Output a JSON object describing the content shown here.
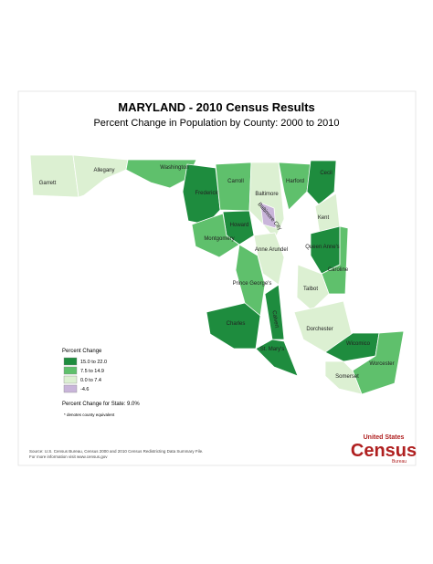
{
  "title": "MARYLAND - 2010 Census Results",
  "subtitle": "Percent Change in Population by County:  2000 to 2010",
  "counties": [
    {
      "name": "Garrett",
      "color": "#dcf0d2"
    },
    {
      "name": "Allegany",
      "color": "#dcf0d2"
    },
    {
      "name": "Washington",
      "color": "#5fc06c"
    },
    {
      "name": "Frederick",
      "color": "#1e8c3e"
    },
    {
      "name": "Carroll",
      "color": "#5fc06c"
    },
    {
      "name": "Baltimore",
      "color": "#dcf0d2"
    },
    {
      "name": "Baltimore City",
      "color": "#c9b5da"
    },
    {
      "name": "Harford",
      "color": "#5fc06c"
    },
    {
      "name": "Cecil",
      "color": "#1e8c3e"
    },
    {
      "name": "Howard",
      "color": "#1e8c3e"
    },
    {
      "name": "Montgomery",
      "color": "#5fc06c"
    },
    {
      "name": "Anne Arundel",
      "color": "#dcf0d2"
    },
    {
      "name": "Kent",
      "color": "#dcf0d2"
    },
    {
      "name": "Queen Anne's",
      "color": "#1e8c3e"
    },
    {
      "name": "Caroline",
      "color": "#5fc06c"
    },
    {
      "name": "Talbot",
      "color": "#dcf0d2"
    },
    {
      "name": "Prince George's",
      "color": "#5fc06c"
    },
    {
      "name": "Charles",
      "color": "#1e8c3e"
    },
    {
      "name": "Calvert",
      "color": "#1e8c3e"
    },
    {
      "name": "St. Mary's",
      "color": "#1e8c3e"
    },
    {
      "name": "Dorchester",
      "color": "#dcf0d2"
    },
    {
      "name": "Wicomico",
      "color": "#1e8c3e"
    },
    {
      "name": "Worcester",
      "color": "#5fc06c"
    },
    {
      "name": "Somerset",
      "color": "#dcf0d2"
    }
  ],
  "legend": {
    "title": "Percent Change",
    "items": [
      {
        "label": "15.0 to 22.0",
        "color": "#1e8c3e"
      },
      {
        "label": "7.5 to 14.9",
        "color": "#5fc06c"
      },
      {
        "label": "0.0 to 7.4",
        "color": "#dcf0d2"
      },
      {
        "label": "-4.6",
        "color": "#c9b5da"
      }
    ],
    "state_note": "Percent Change for State:  9.0%",
    "footnote": "* denotes county equivalent"
  },
  "source": [
    "Source:  U.S. Census Bureau, Census 2000 and 2010 Census Redistricting Data Summary File.",
    "For more information visit www.census.gov"
  ],
  "logo": {
    "top": "United States",
    "main": "Census",
    "bottom": "Bureau"
  }
}
